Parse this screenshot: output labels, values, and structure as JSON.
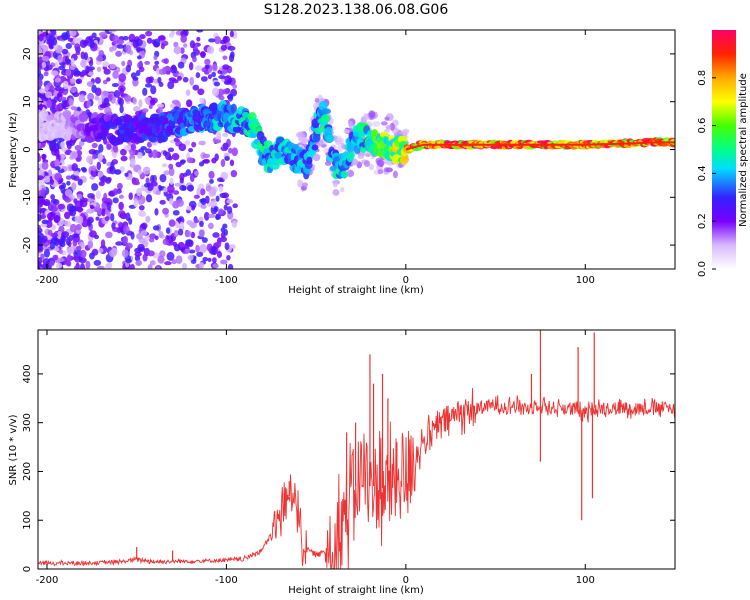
{
  "title": "S128.2023.138.06.08.G06",
  "chart_data": [
    {
      "type": "heatmap",
      "xlabel": "Height of straight line (km)",
      "ylabel": "Frequency (Hz)",
      "xlim": [
        -205,
        150
      ],
      "ylim": [
        -25,
        25
      ],
      "xticks": [
        -200,
        -100,
        0,
        100
      ],
      "yticks": [
        -20,
        -10,
        0,
        10,
        20
      ],
      "colorbar": {
        "label": "Normalized spectral amplitude",
        "range": [
          0,
          1
        ],
        "ticks": [
          "0.0",
          "0.2",
          "0.4",
          "0.6",
          "0.8"
        ],
        "colormap": [
          "#ffffff",
          "#8800ff",
          "#3300ff",
          "#00e5ff",
          "#00ff55",
          "#ffff00",
          "#ff5500",
          "#ff0066"
        ]
      },
      "ridge": {
        "x": [
          -200,
          -185,
          -170,
          -160,
          -150,
          -140,
          -130,
          -120,
          -110,
          -100,
          -90,
          -85,
          -80,
          -75,
          -70,
          -65,
          -60,
          -55,
          -50,
          -47,
          -45,
          -40,
          -35,
          -30,
          -25,
          -20,
          -15,
          -10,
          -5,
          0,
          5,
          10,
          20,
          30,
          40,
          60,
          80,
          100,
          120,
          140,
          150
        ],
        "y": [
          5,
          5,
          4.5,
          4,
          4.5,
          4.5,
          5,
          6,
          6.5,
          7,
          6,
          5,
          0,
          -2,
          0,
          -1,
          -2,
          -3,
          4,
          8,
          6,
          -3,
          -4,
          1,
          3,
          2,
          1,
          1,
          0,
          0,
          0.5,
          1,
          1,
          1,
          1,
          1,
          1,
          1,
          1.2,
          1.5,
          1.5
        ],
        "amp": [
          0.1,
          0.15,
          0.25,
          0.3,
          0.3,
          0.3,
          0.35,
          0.4,
          0.4,
          0.45,
          0.45,
          0.5,
          0.5,
          0.45,
          0.45,
          0.45,
          0.45,
          0.4,
          0.4,
          0.5,
          0.5,
          0.45,
          0.45,
          0.45,
          0.5,
          0.55,
          0.6,
          0.65,
          0.7,
          0.8,
          0.85,
          0.9,
          0.95,
          0.95,
          0.95,
          0.95,
          0.95,
          0.95,
          0.9,
          0.9,
          0.9
        ]
      }
    },
    {
      "type": "line",
      "xlabel": "Height of straight line (km)",
      "ylabel": "SNR (10 * v/v)",
      "xlim": [
        -205,
        150
      ],
      "ylim": [
        0,
        490
      ],
      "xticks": [
        -200,
        -100,
        0,
        100
      ],
      "yticks": [
        0,
        100,
        200,
        300,
        400
      ],
      "color": "#ee3333",
      "series": [
        {
          "x": [
            -205,
            -180,
            -160,
            -150,
            -140,
            -120,
            -100,
            -90,
            -80,
            -75,
            -70,
            -65,
            -62,
            -60,
            -57,
            -55,
            -50,
            -45,
            -40,
            -35,
            -30,
            -25,
            -20,
            -15,
            -10,
            -5,
            0,
            5,
            10,
            15,
            20,
            25,
            30,
            35,
            40,
            50,
            60,
            70,
            75,
            80,
            90,
            95,
            98,
            100,
            104,
            110,
            120,
            130,
            140,
            150
          ],
          "y": [
            12,
            12,
            14,
            20,
            15,
            16,
            18,
            20,
            40,
            70,
            110,
            150,
            170,
            120,
            50,
            40,
            30,
            35,
            55,
            100,
            150,
            200,
            170,
            170,
            160,
            180,
            195,
            230,
            260,
            280,
            300,
            310,
            320,
            325,
            330,
            335,
            335,
            330,
            340,
            330,
            330,
            325,
            320,
            315,
            330,
            330,
            330,
            330,
            330,
            330
          ]
        }
      ],
      "spikes": [
        {
          "x": -150,
          "y": 45
        },
        {
          "x": -130,
          "y": 38
        },
        {
          "x": -65,
          "y": 180
        },
        {
          "x": -33,
          "y": 280
        },
        {
          "x": -28,
          "y": 300
        },
        {
          "x": -20,
          "y": 440
        },
        {
          "x": -18,
          "y": 380
        },
        {
          "x": -13,
          "y": 400
        },
        {
          "x": -10,
          "y": 350
        },
        {
          "x": -5,
          "y": 260
        },
        {
          "x": 70,
          "y": 400
        },
        {
          "x": 75,
          "y": 490
        },
        {
          "x": 96,
          "y": 455
        },
        {
          "x": 105,
          "y": 485
        },
        {
          "x": 98,
          "y": 100
        },
        {
          "x": 104,
          "y": 145
        },
        {
          "x": 75,
          "y": 220
        }
      ]
    }
  ]
}
